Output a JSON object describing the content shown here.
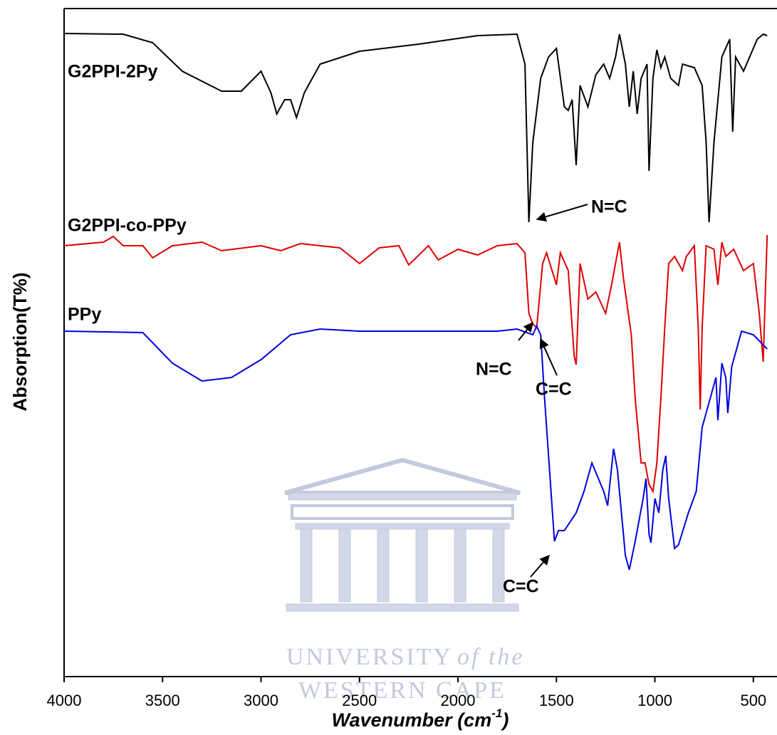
{
  "chart_data": {
    "type": "line",
    "ylabel": "Absorption(T%)",
    "xlabel": "Wavenumber (cm",
    "xlabel_superscript": "-1",
    "xlabel_suffix": ")",
    "xlim": [
      4000,
      380
    ],
    "xticks": [
      4000,
      3500,
      3000,
      2500,
      2000,
      1500,
      1000,
      500
    ],
    "ylim": [
      0,
      938
    ],
    "series": [
      {
        "name": "G2PPI-2Py",
        "color": "#000000",
        "x": [
          4000,
          3700,
          3550,
          3400,
          3200,
          3100,
          3000,
          2950,
          2920,
          2880,
          2850,
          2820,
          2780,
          2700,
          2500,
          2200,
          1900,
          1700,
          1660,
          1640,
          1620,
          1580,
          1540,
          1500,
          1460,
          1440,
          1420,
          1400,
          1380,
          1340,
          1300,
          1260,
          1230,
          1200,
          1180,
          1150,
          1130,
          1110,
          1090,
          1070,
          1040,
          1030,
          1010,
          990,
          970,
          950,
          920,
          880,
          860,
          800,
          760,
          740,
          725,
          700,
          660,
          620,
          605,
          590,
          550,
          480,
          450,
          430
        ],
        "values": [
          903,
          902,
          890,
          850,
          822,
          822,
          850,
          820,
          790,
          810,
          810,
          785,
          820,
          860,
          878,
          888,
          900,
          902,
          860,
          638,
          750,
          840,
          870,
          882,
          800,
          795,
          810,
          718,
          830,
          800,
          845,
          860,
          840,
          870,
          902,
          860,
          800,
          850,
          790,
          840,
          860,
          710,
          840,
          880,
          855,
          870,
          840,
          830,
          860,
          855,
          830,
          750,
          638,
          750,
          870,
          895,
          765,
          870,
          850,
          895,
          902,
          900
        ]
      },
      {
        "name": "G2PPI-co-PPy",
        "color": "#e00000",
        "x": [
          4000,
          3800,
          3750,
          3700,
          3600,
          3550,
          3450,
          3300,
          3200,
          3000,
          2900,
          2800,
          2600,
          2500,
          2400,
          2300,
          2250,
          2150,
          2100,
          2000,
          1900,
          1800,
          1700,
          1660,
          1640,
          1620,
          1600,
          1570,
          1550,
          1500,
          1480,
          1440,
          1410,
          1400,
          1380,
          1340,
          1300,
          1250,
          1220,
          1180,
          1160,
          1120,
          1100,
          1070,
          1050,
          1030,
          1010,
          990,
          970,
          950,
          930,
          900,
          860,
          840,
          800,
          780,
          770,
          760,
          740,
          700,
          680,
          660,
          640,
          600,
          550,
          500,
          470,
          450,
          430
        ],
        "values": [
          605,
          610,
          618,
          605,
          605,
          588,
          605,
          610,
          598,
          605,
          598,
          608,
          602,
          580,
          602,
          605,
          578,
          605,
          585,
          600,
          592,
          605,
          608,
          595,
          510,
          495,
          490,
          580,
          595,
          550,
          595,
          570,
          450,
          438,
          580,
          530,
          540,
          510,
          550,
          610,
          560,
          480,
          390,
          300,
          300,
          270,
          260,
          300,
          390,
          490,
          580,
          590,
          570,
          590,
          605,
          490,
          375,
          490,
          605,
          600,
          550,
          610,
          590,
          600,
          570,
          580,
          510,
          442,
          620
        ]
      },
      {
        "name": "PPy",
        "color": "#0000e0",
        "x": [
          4000,
          3600,
          3450,
          3300,
          3150,
          3000,
          2850,
          2700,
          2500,
          2000,
          1800,
          1700,
          1620,
          1600,
          1580,
          1560,
          1530,
          1510,
          1490,
          1460,
          1400,
          1360,
          1320,
          1260,
          1240,
          1210,
          1190,
          1150,
          1130,
          1100,
          1060,
          1045,
          1030,
          1020,
          1000,
          980,
          960,
          945,
          930,
          900,
          880,
          830,
          790,
          760,
          720,
          690,
          680,
          660,
          640,
          630,
          610,
          560,
          500,
          430
        ],
        "values": [
          485,
          483,
          440,
          415,
          420,
          445,
          480,
          488,
          485,
          485,
          485,
          488,
          480,
          492,
          480,
          390,
          270,
          190,
          205,
          205,
          230,
          260,
          300,
          260,
          240,
          320,
          290,
          170,
          150,
          190,
          250,
          278,
          200,
          188,
          250,
          230,
          290,
          310,
          250,
          180,
          185,
          230,
          260,
          350,
          390,
          420,
          360,
          440,
          420,
          370,
          435,
          485,
          480,
          460
        ]
      }
    ],
    "annotations": [
      "N=C",
      "N=C",
      "C=C",
      "C=C"
    ],
    "watermark": [
      "UNIVERSITY",
      "of the",
      "WESTERN CAPE"
    ]
  }
}
